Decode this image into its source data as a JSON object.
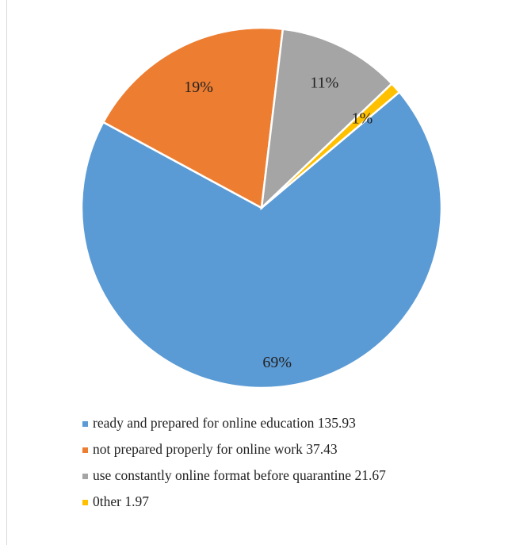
{
  "chart_data": {
    "type": "pie",
    "title": "",
    "slices": [
      {
        "label": "ready and prepared for online education  135.93",
        "value": 135.93,
        "percent_label": "69%",
        "color": "#5b9bd5"
      },
      {
        "label": "not prepared properly for online work 37.43",
        "value": 37.43,
        "percent_label": "19%",
        "color": "#ed7d31"
      },
      {
        "label": "use constantly online format before quarantine 21.67",
        "value": 21.67,
        "percent_label": "11%",
        "color": "#a5a5a5"
      },
      {
        "label": "0ther 1.97",
        "value": 1.97,
        "percent_label": "1%",
        "color": "#ffc000"
      }
    ],
    "start_angle_deg": 40,
    "direction": "clockwise",
    "legend_position": "bottom"
  }
}
